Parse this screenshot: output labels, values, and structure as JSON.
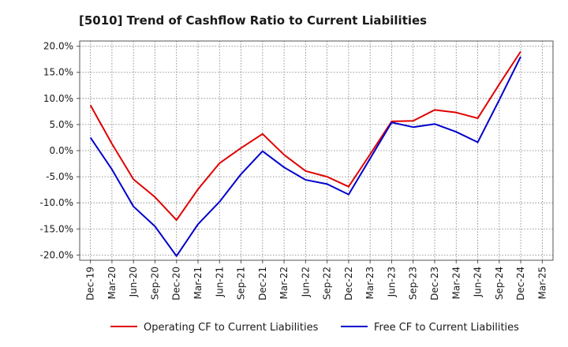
{
  "chart_data": {
    "type": "line",
    "title": "[5010]  Trend of Cashflow Ratio to Current Liabilities",
    "xlabel": "",
    "ylabel": "",
    "x_ticks": [
      "Dec-19",
      "Mar-20",
      "Jun-20",
      "Sep-20",
      "Dec-20",
      "Mar-21",
      "Jun-21",
      "Sep-21",
      "Dec-21",
      "Mar-22",
      "Jun-22",
      "Sep-22",
      "Dec-22",
      "Mar-23",
      "Jun-23",
      "Sep-23",
      "Dec-23",
      "Mar-24",
      "Jun-24",
      "Sep-24",
      "Dec-24",
      "Mar-25"
    ],
    "y_ticks": [
      "20.0%",
      "15.0%",
      "10.0%",
      "5.0%",
      "0.0%",
      "-5.0%",
      "-10.0%",
      "-15.0%",
      "-20.0%"
    ],
    "y_tick_values": [
      20,
      15,
      10,
      5,
      0,
      -5,
      -10,
      -15,
      -20
    ],
    "ylim": [
      -21,
      21
    ],
    "grid": true,
    "legend_position": "bottom",
    "series": [
      {
        "name": "Operating CF to Current Liabilities",
        "color": "#e00000",
        "x": [
          "Dec-19",
          "Mar-20",
          "Jun-20",
          "Sep-20",
          "Dec-20",
          "Mar-21",
          "Jun-21",
          "Sep-21",
          "Dec-21",
          "Mar-22",
          "Jun-22",
          "Sep-22",
          "Dec-22",
          "Mar-23",
          "Jun-23",
          "Sep-23",
          "Dec-23",
          "Mar-24",
          "Jun-24",
          "Sep-24",
          "Dec-24"
        ],
        "values": [
          8.7,
          1.3,
          -5.5,
          -8.9,
          -13.3,
          -7.4,
          -2.4,
          0.5,
          3.2,
          -0.8,
          -3.9,
          -5.0,
          -6.9,
          -0.7,
          5.6,
          5.7,
          7.8,
          7.3,
          6.2,
          12.7,
          19.0
        ]
      },
      {
        "name": "Free CF to Current Liabilities",
        "color": "#0000cc",
        "x": [
          "Dec-19",
          "Mar-20",
          "Jun-20",
          "Sep-20",
          "Dec-20",
          "Mar-21",
          "Jun-21",
          "Sep-21",
          "Dec-21",
          "Mar-22",
          "Jun-22",
          "Sep-22",
          "Dec-22",
          "Mar-23",
          "Jun-23",
          "Sep-23",
          "Dec-23",
          "Mar-24",
          "Jun-24",
          "Sep-24",
          "Dec-24"
        ],
        "values": [
          2.5,
          -3.6,
          -10.7,
          -14.5,
          -20.2,
          -14.1,
          -9.8,
          -4.5,
          -0.1,
          -3.2,
          -5.6,
          -6.4,
          -8.4,
          -1.5,
          5.4,
          4.5,
          5.1,
          3.6,
          1.6,
          9.7,
          18.0
        ]
      }
    ]
  }
}
